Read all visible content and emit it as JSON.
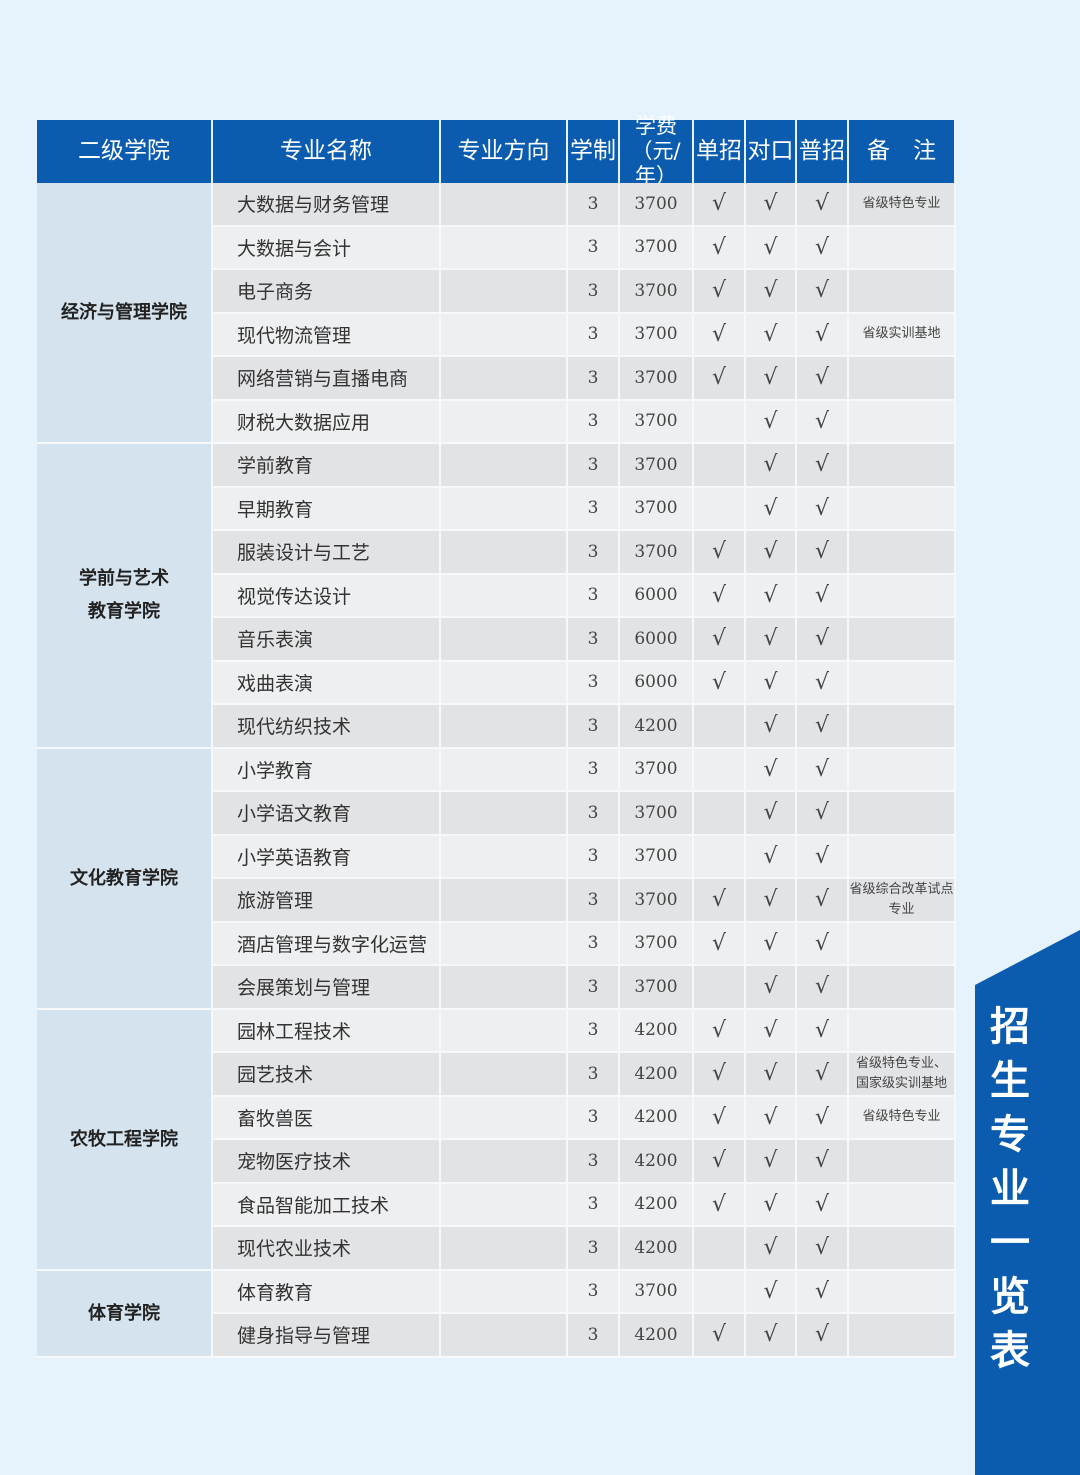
{
  "headers": [
    "二级学院",
    "专业名称",
    "专业方向",
    "学制",
    "学费（元/年）",
    "单招",
    "对口",
    "普招",
    "备　注"
  ],
  "side_banner": "招生专业一览表",
  "check": "√",
  "departments": [
    {
      "name": "经济与管理学院",
      "rows": 6
    },
    {
      "name": "学前与艺术教育学院",
      "rows": 7
    },
    {
      "name": "文化教育学院",
      "rows": 6
    },
    {
      "name": "农牧工程学院",
      "rows": 6
    },
    {
      "name": "体育学院",
      "rows": 2
    }
  ],
  "rows": [
    {
      "major": "大数据与财务管理",
      "years": "3",
      "fee": "3700",
      "dz": true,
      "dk": true,
      "pz": true,
      "note": "省级特色专业"
    },
    {
      "major": "大数据与会计",
      "years": "3",
      "fee": "3700",
      "dz": true,
      "dk": true,
      "pz": true,
      "note": ""
    },
    {
      "major": "电子商务",
      "years": "3",
      "fee": "3700",
      "dz": true,
      "dk": true,
      "pz": true,
      "note": ""
    },
    {
      "major": "现代物流管理",
      "years": "3",
      "fee": "3700",
      "dz": true,
      "dk": true,
      "pz": true,
      "note": "省级实训基地"
    },
    {
      "major": "网络营销与直播电商",
      "years": "3",
      "fee": "3700",
      "dz": true,
      "dk": true,
      "pz": true,
      "note": ""
    },
    {
      "major": "财税大数据应用",
      "years": "3",
      "fee": "3700",
      "dz": false,
      "dk": true,
      "pz": true,
      "note": ""
    },
    {
      "major": "学前教育",
      "years": "3",
      "fee": "3700",
      "dz": false,
      "dk": true,
      "pz": true,
      "note": ""
    },
    {
      "major": "早期教育",
      "years": "3",
      "fee": "3700",
      "dz": false,
      "dk": true,
      "pz": true,
      "note": ""
    },
    {
      "major": "服装设计与工艺",
      "years": "3",
      "fee": "3700",
      "dz": true,
      "dk": true,
      "pz": true,
      "note": ""
    },
    {
      "major": "视觉传达设计",
      "years": "3",
      "fee": "6000",
      "dz": true,
      "dk": true,
      "pz": true,
      "note": ""
    },
    {
      "major": "音乐表演",
      "years": "3",
      "fee": "6000",
      "dz": true,
      "dk": true,
      "pz": true,
      "note": ""
    },
    {
      "major": "戏曲表演",
      "years": "3",
      "fee": "6000",
      "dz": true,
      "dk": true,
      "pz": true,
      "note": ""
    },
    {
      "major": "现代纺织技术",
      "years": "3",
      "fee": "4200",
      "dz": false,
      "dk": true,
      "pz": true,
      "note": ""
    },
    {
      "major": "小学教育",
      "years": "3",
      "fee": "3700",
      "dz": false,
      "dk": true,
      "pz": true,
      "note": ""
    },
    {
      "major": "小学语文教育",
      "years": "3",
      "fee": "3700",
      "dz": false,
      "dk": true,
      "pz": true,
      "note": ""
    },
    {
      "major": "小学英语教育",
      "years": "3",
      "fee": "3700",
      "dz": false,
      "dk": true,
      "pz": true,
      "note": ""
    },
    {
      "major": "旅游管理",
      "years": "3",
      "fee": "3700",
      "dz": true,
      "dk": true,
      "pz": true,
      "note": "省级综合改革试点专业"
    },
    {
      "major": "酒店管理与数字化运营",
      "years": "3",
      "fee": "3700",
      "dz": true,
      "dk": true,
      "pz": true,
      "note": ""
    },
    {
      "major": "会展策划与管理",
      "years": "3",
      "fee": "3700",
      "dz": false,
      "dk": true,
      "pz": true,
      "note": ""
    },
    {
      "major": "园林工程技术",
      "years": "3",
      "fee": "4200",
      "dz": true,
      "dk": true,
      "pz": true,
      "note": ""
    },
    {
      "major": "园艺技术",
      "years": "3",
      "fee": "4200",
      "dz": true,
      "dk": true,
      "pz": true,
      "note": "省级特色专业、\n国家级实训基地"
    },
    {
      "major": "畜牧兽医",
      "years": "3",
      "fee": "4200",
      "dz": true,
      "dk": true,
      "pz": true,
      "note": "省级特色专业"
    },
    {
      "major": "宠物医疗技术",
      "years": "3",
      "fee": "4200",
      "dz": true,
      "dk": true,
      "pz": true,
      "note": ""
    },
    {
      "major": "食品智能加工技术",
      "years": "3",
      "fee": "4200",
      "dz": true,
      "dk": true,
      "pz": true,
      "note": ""
    },
    {
      "major": "现代农业技术",
      "years": "3",
      "fee": "4200",
      "dz": false,
      "dk": true,
      "pz": true,
      "note": ""
    },
    {
      "major": "体育教育",
      "years": "3",
      "fee": "3700",
      "dz": false,
      "dk": true,
      "pz": true,
      "note": ""
    },
    {
      "major": "健身指导与管理",
      "years": "3",
      "fee": "4200",
      "dz": true,
      "dk": true,
      "pz": true,
      "note": ""
    }
  ],
  "colors": {
    "header": "#0b5cae",
    "dept_bg": "#d5e3ee",
    "row_dark": "#e2e3e5",
    "row_light": "#eeeff0"
  }
}
